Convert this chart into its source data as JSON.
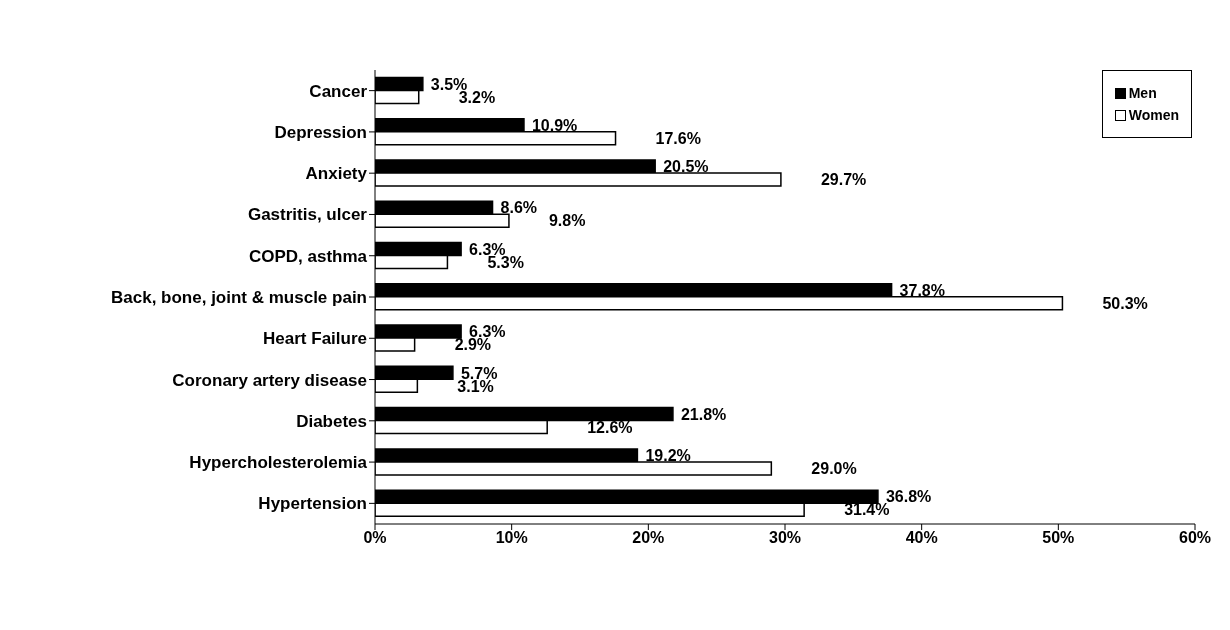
{
  "chart_data": {
    "type": "bar",
    "orientation": "horizontal",
    "categories": [
      "Cancer",
      "Depression",
      "Anxiety",
      "Gastritis, ulcer",
      "COPD, asthma",
      "Back, bone, joint & muscle pain",
      "Heart Failure",
      "Coronary artery disease",
      "Diabetes",
      "Hypercholesterolemia",
      "Hypertension"
    ],
    "series": [
      {
        "name": "Men",
        "color": "#000000",
        "values": [
          3.5,
          10.9,
          20.5,
          8.6,
          6.3,
          37.8,
          6.3,
          5.7,
          21.8,
          19.2,
          36.8
        ],
        "value_labels": [
          "3.5%",
          "10.9%",
          "20.5%",
          "8.6%",
          "6.3%",
          "37.8%",
          "6.3%",
          "5.7%",
          "21.8%",
          "19.2%",
          "36.8%"
        ]
      },
      {
        "name": "Women",
        "color": "#ffffff",
        "values": [
          3.2,
          17.6,
          29.7,
          9.8,
          5.3,
          50.3,
          2.9,
          3.1,
          12.6,
          29.0,
          31.4
        ],
        "value_labels": [
          "3.2%",
          "17.6%",
          "29.7%",
          "9.8%",
          "5.3%",
          "50.3%",
          "2.9%",
          "3.1%",
          "12.6%",
          "29.0%",
          "31.4%"
        ]
      }
    ],
    "xlim": [
      0,
      60
    ],
    "xticks": [
      {
        "value": 0,
        "label": "0%"
      },
      {
        "value": 10,
        "label": "10%"
      },
      {
        "value": 20,
        "label": "20%"
      },
      {
        "value": 30,
        "label": "30%"
      },
      {
        "value": 40,
        "label": "40%"
      },
      {
        "value": 50,
        "label": "50%"
      },
      {
        "value": 60,
        "label": "60%"
      }
    ],
    "grid": false,
    "legend": "top right"
  }
}
